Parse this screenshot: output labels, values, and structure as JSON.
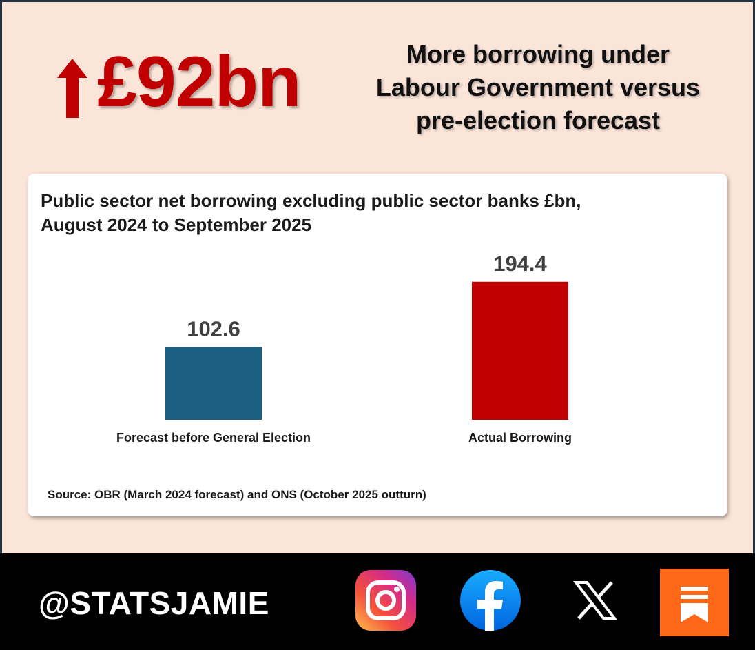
{
  "headline": {
    "amount": "£92bn",
    "title_lines": [
      "More borrowing under",
      "Labour Government versus",
      "pre-election forecast"
    ]
  },
  "chart_data": {
    "type": "bar",
    "title": "Public sector net borrowing excluding public sector banks £bn, August 2024 to September 2025",
    "title_lines": [
      "Public sector net borrowing excluding public sector banks £bn,",
      "August 2024 to September 2025"
    ],
    "categories": [
      "Forecast before General Election",
      "Actual Borrowing"
    ],
    "values": [
      102.6,
      194.4
    ],
    "value_labels": [
      "102.6",
      "194.4"
    ],
    "colors": [
      "#1b5e82",
      "#c00000"
    ],
    "xlabel": "",
    "ylabel": "",
    "ylim": [
      0,
      200
    ],
    "grid": false,
    "legend": "none",
    "source": "Source: OBR (March 2024 forecast) and ONS (October 2025 outturn)"
  },
  "footer": {
    "handle": "@STATSJAMIE",
    "social_icons": [
      "instagram-icon",
      "facebook-icon",
      "x-icon",
      "substack-icon"
    ]
  },
  "colors": {
    "background": "#fbe4d8",
    "accent_red": "#c00000",
    "footer_bg": "#000000"
  }
}
